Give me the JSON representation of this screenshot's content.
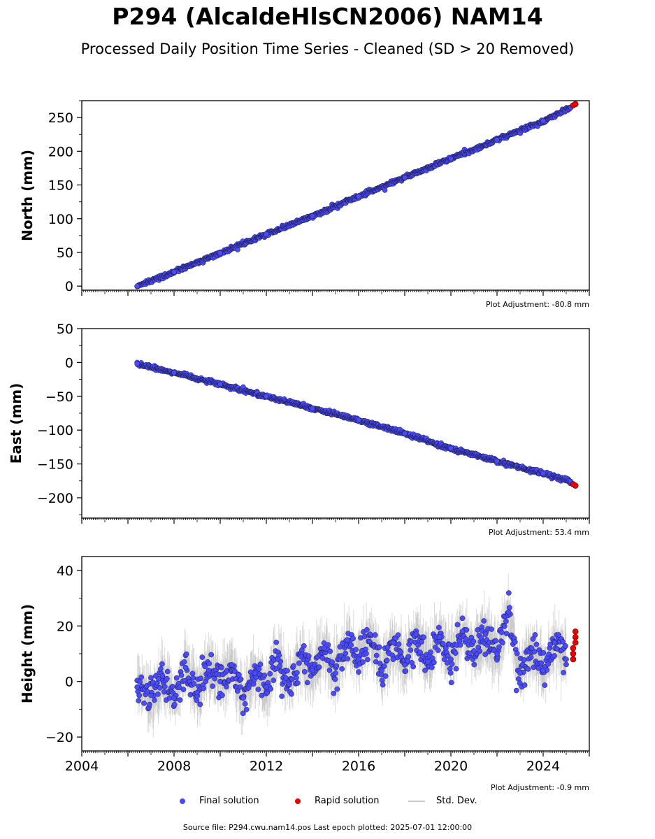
{
  "title": "P294 (AlcaldeHlsCN2006) NAM14",
  "subtitle": "Processed Daily Position Time Series - Cleaned (SD > 20 Removed)",
  "source": "Source file: P294.cwu.nam14.pos  Last epoch plotted: 2025-07-01 12:00:00",
  "legend": {
    "final": "Final solution",
    "rapid": "Rapid solution",
    "std": "Std. Dev."
  },
  "colors": {
    "final": "#4a4aff",
    "rapid": "#ee0000",
    "edge": "#1a1a3a",
    "std": "#999999"
  },
  "chart_data": [
    {
      "type": "scatter",
      "ylabel": "North (mm)",
      "adjustment": "Plot Adjustment: -80.8 mm",
      "xlim": [
        2004,
        2026
      ],
      "ylim": [
        -6,
        275
      ],
      "yticks": [
        0,
        50,
        100,
        150,
        200,
        250
      ],
      "series": [
        {
          "name": "Final solution",
          "x": [
            2006.4,
            2008.0,
            2010.0,
            2012.0,
            2014.0,
            2016.0,
            2018.0,
            2020.0,
            2022.0,
            2024.0,
            2025.2
          ],
          "y": [
            0,
            21,
            49,
            77,
            104,
            133,
            161,
            189,
            217,
            245,
            265
          ]
        },
        {
          "name": "Rapid solution",
          "x": [
            2025.3,
            2025.4
          ],
          "y": [
            268,
            270
          ]
        }
      ]
    },
    {
      "type": "scatter",
      "ylabel": "East (mm)",
      "adjustment": "Plot Adjustment: 53.4 mm",
      "xlim": [
        2004,
        2026
      ],
      "ylim": [
        -230,
        50
      ],
      "yticks": [
        -200,
        -150,
        -100,
        -50,
        0,
        50
      ],
      "series": [
        {
          "name": "Final solution",
          "x": [
            2006.4,
            2008.0,
            2010.0,
            2012.0,
            2014.0,
            2016.0,
            2018.0,
            2020.0,
            2022.0,
            2024.0,
            2025.2
          ],
          "y": [
            -2,
            -15,
            -32,
            -50,
            -68,
            -85,
            -105,
            -127,
            -146,
            -164,
            -176
          ]
        },
        {
          "name": "Rapid solution",
          "x": [
            2025.3,
            2025.4
          ],
          "y": [
            -180,
            -182
          ]
        }
      ]
    },
    {
      "type": "scatter",
      "ylabel": "Height (mm)",
      "adjustment": "Plot Adjustment: -0.9 mm",
      "xlim": [
        2004,
        2026
      ],
      "ylim": [
        -25,
        45
      ],
      "yticks": [
        -20,
        0,
        20,
        40
      ],
      "xticks": [
        2004,
        2008,
        2012,
        2016,
        2020,
        2024
      ],
      "series": [
        {
          "name": "Final solution",
          "x": [
            2006.4,
            2007.0,
            2007.5,
            2008.0,
            2008.5,
            2009.0,
            2009.5,
            2010.0,
            2010.5,
            2011.0,
            2011.5,
            2012.0,
            2012.5,
            2013.0,
            2013.5,
            2014.0,
            2014.5,
            2015.0,
            2015.5,
            2016.0,
            2016.5,
            2017.0,
            2017.5,
            2018.0,
            2018.5,
            2019.0,
            2019.5,
            2020.0,
            2020.5,
            2021.0,
            2021.5,
            2022.0,
            2022.5,
            2023.0,
            2023.5,
            2024.0,
            2024.5,
            2025.0
          ],
          "y": [
            -2,
            -5,
            2,
            -6,
            5,
            -4,
            4,
            0,
            6,
            -6,
            3,
            -2,
            8,
            -1,
            9,
            4,
            12,
            3,
            15,
            8,
            17,
            4,
            14,
            6,
            17,
            7,
            16,
            8,
            18,
            11,
            17,
            10,
            25,
            3,
            12,
            4,
            14,
            8
          ]
        },
        {
          "name": "Rapid solution",
          "x": [
            2025.3,
            2025.3,
            2025.3,
            2025.4,
            2025.4,
            2025.4
          ],
          "y": [
            8,
            10,
            12,
            14,
            16,
            18
          ]
        }
      ]
    }
  ]
}
